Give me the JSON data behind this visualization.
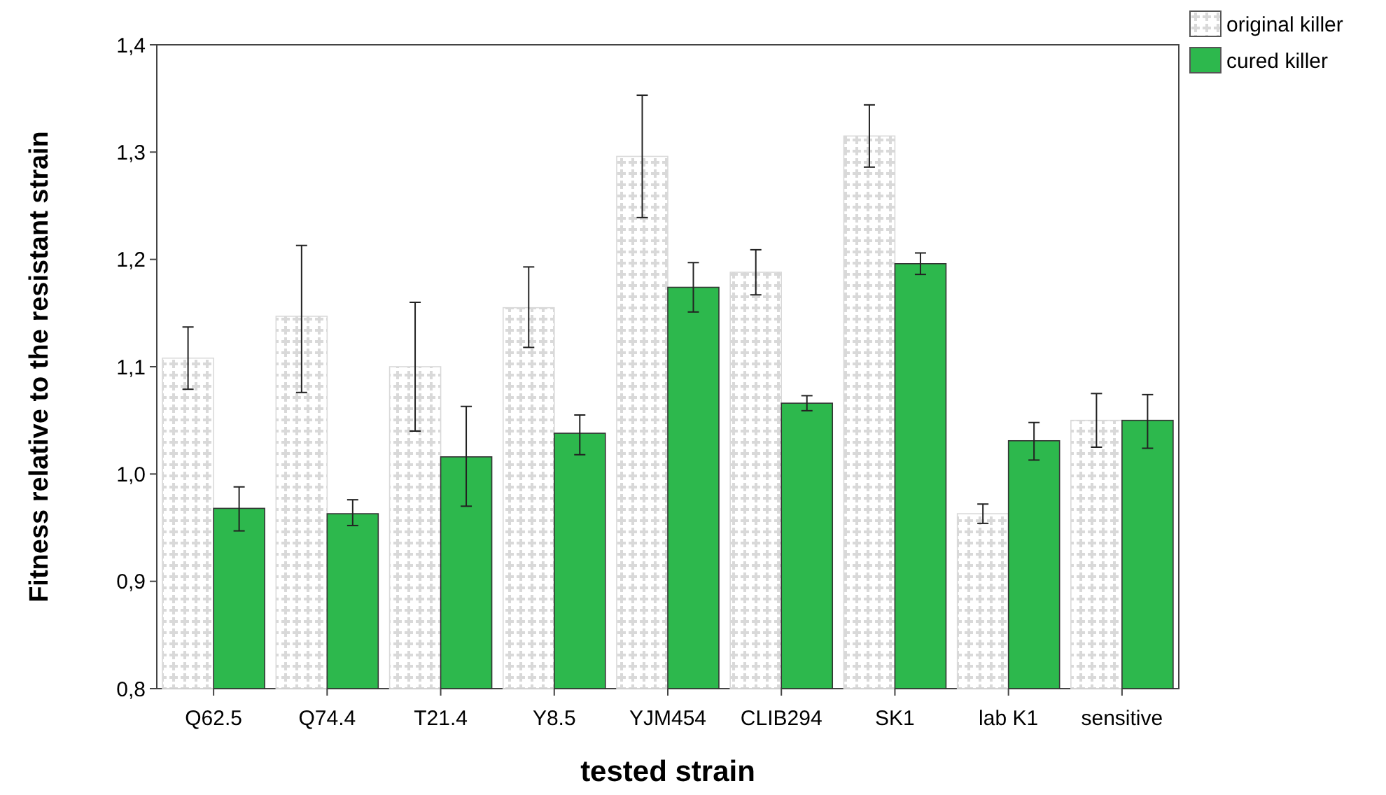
{
  "chart_data": {
    "type": "bar",
    "xlabel": "tested strain",
    "ylabel": "Fitness relative to the resistant strain",
    "categories": [
      "Q62.5",
      "Q74.4",
      "T21.4",
      "Y8.5",
      "YJM454",
      "CLIB294",
      "SK1",
      "lab K1",
      "sensitive"
    ],
    "series": [
      {
        "name": "original killer",
        "color": "#d9d9d9",
        "values": [
          1.108,
          1.147,
          1.1,
          1.155,
          1.296,
          1.188,
          1.315,
          0.963,
          1.05
        ],
        "errors": [
          [
            1.079,
            1.137
          ],
          [
            1.076,
            1.213
          ],
          [
            1.04,
            1.16
          ],
          [
            1.118,
            1.193
          ],
          [
            1.239,
            1.353
          ],
          [
            1.167,
            1.209
          ],
          [
            1.286,
            1.344
          ],
          [
            0.954,
            0.972
          ],
          [
            1.025,
            1.075
          ]
        ]
      },
      {
        "name": "cured killer",
        "color": "#2db84d",
        "values": [
          0.968,
          0.963,
          1.016,
          1.038,
          1.174,
          1.066,
          1.196,
          1.031,
          1.05
        ],
        "errors": [
          [
            0.947,
            0.988
          ],
          [
            0.952,
            0.976
          ],
          [
            0.97,
            1.063
          ],
          [
            1.018,
            1.055
          ],
          [
            1.151,
            1.197
          ],
          [
            1.059,
            1.073
          ],
          [
            1.186,
            1.206
          ],
          [
            1.013,
            1.048
          ],
          [
            1.024,
            1.074
          ]
        ]
      }
    ],
    "ylim": [
      0.8,
      1.4
    ],
    "yticks": [
      {
        "value": 0.8,
        "label": "0,8"
      },
      {
        "value": 0.9,
        "label": "0,9"
      },
      {
        "value": 1.0,
        "label": "1,0"
      },
      {
        "value": 1.1,
        "label": "1,1"
      },
      {
        "value": 1.2,
        "label": "1,2"
      },
      {
        "value": 1.3,
        "label": "1,3"
      },
      {
        "value": 1.4,
        "label": "1,4"
      }
    ],
    "legend": "top right",
    "grid": false
  }
}
